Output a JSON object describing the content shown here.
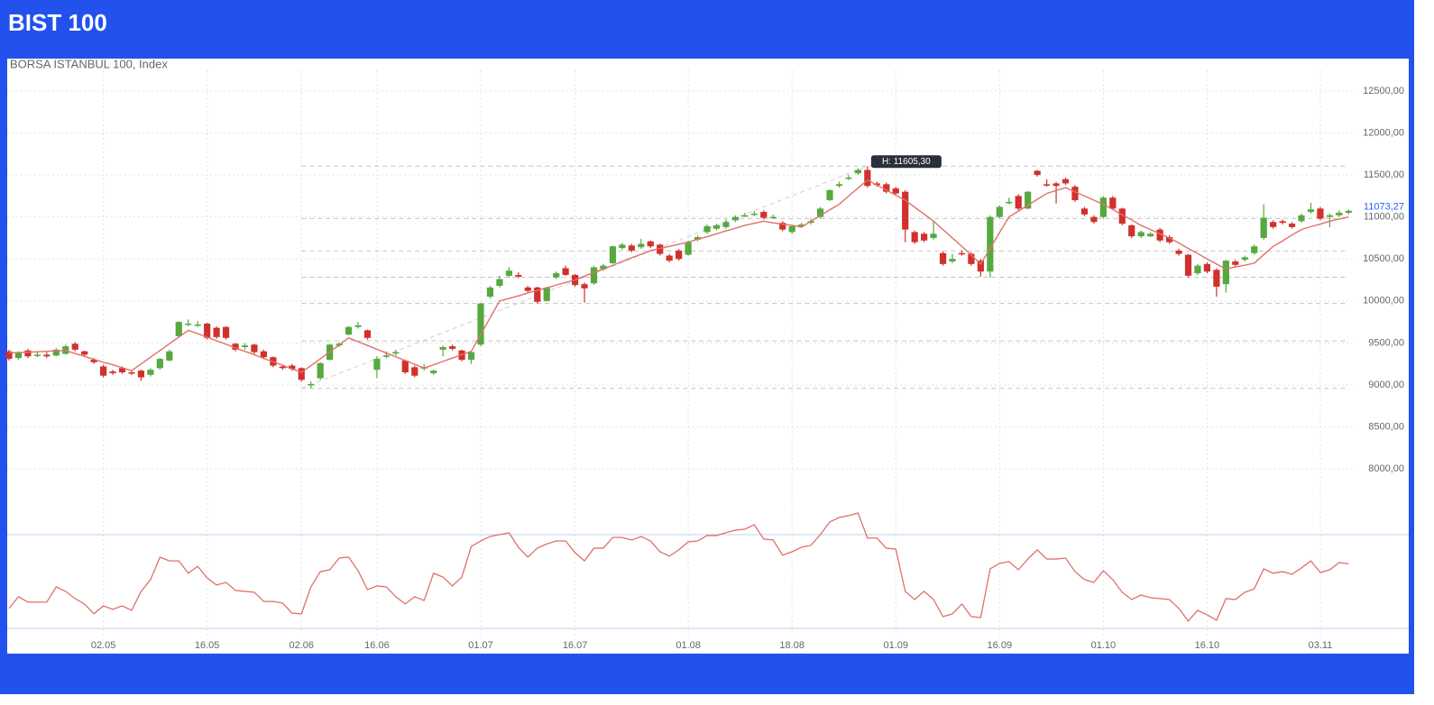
{
  "header": {
    "title": "BIST 100"
  },
  "chart_data": {
    "type": "candlestick",
    "title": "BORSA ISTANBUL 100, Index",
    "categories": [
      null,
      null,
      null,
      null,
      null,
      null,
      null,
      null,
      null,
      null,
      "02.05",
      null,
      null,
      null,
      null,
      null,
      null,
      null,
      null,
      null,
      null,
      "16.05",
      null,
      null,
      null,
      null,
      null,
      null,
      null,
      null,
      null,
      "02.06",
      null,
      null,
      null,
      null,
      null,
      null,
      null,
      "16.06",
      null,
      null,
      null,
      null,
      null,
      null,
      null,
      null,
      null,
      null,
      "01.07",
      null,
      null,
      null,
      null,
      null,
      null,
      null,
      null,
      null,
      "16.07",
      null,
      null,
      null,
      null,
      null,
      null,
      null,
      null,
      null,
      null,
      null,
      "01.08",
      null,
      null,
      null,
      null,
      null,
      null,
      null,
      null,
      null,
      null,
      "18.08",
      null,
      null,
      null,
      null,
      null,
      null,
      null,
      null,
      null,
      null,
      "01.09",
      null,
      null,
      null,
      null,
      null,
      null,
      null,
      null,
      null,
      null,
      "16.09",
      null,
      null,
      null,
      null,
      null,
      null,
      null,
      null,
      null,
      null,
      "01.10",
      null,
      null,
      null,
      null,
      null,
      null,
      null,
      null,
      null,
      null,
      "16.10",
      null,
      null,
      null,
      null,
      null,
      null,
      null,
      null,
      null,
      null,
      null,
      "03.11",
      null,
      null,
      null
    ],
    "open": [
      9400,
      9320,
      9410,
      9350,
      9360,
      9350,
      9370,
      9490,
      9400,
      9300,
      9220,
      9160,
      9200,
      9150,
      9170,
      9120,
      9200,
      9290,
      9580,
      9720,
      9720,
      9730,
      9680,
      9690,
      9490,
      9450,
      9480,
      9400,
      9330,
      9220,
      9230,
      9200,
      9000,
      9080,
      9300,
      9470,
      9600,
      9690,
      9650,
      9180,
      9340,
      9380,
      9290,
      9210,
      9200,
      9140,
      9420,
      9460,
      9410,
      9300,
      9480,
      10050,
      10180,
      10300,
      10310,
      10160,
      10160,
      10000,
      10280,
      10390,
      10310,
      10200,
      10210,
      10380,
      10450,
      10630,
      10660,
      10640,
      10710,
      10670,
      10540,
      10600,
      10550,
      10730,
      10820,
      10860,
      10880,
      10960,
      11010,
      11030,
      11060,
      11000,
      10930,
      10820,
      10890,
      10930,
      11000,
      11200,
      11370,
      11460,
      11520,
      11560,
      11400,
      11390,
      11340,
      11300,
      10820,
      10800,
      10750,
      10570,
      10470,
      10570,
      10560,
      10480,
      10350,
      11000,
      11170,
      11250,
      11100,
      11550,
      11390,
      11400,
      11450,
      11360,
      11100,
      11000,
      11000,
      11230,
      11100,
      10900,
      10770,
      10770,
      10850,
      10760,
      10600,
      10550,
      10330,
      10440,
      10370,
      10200,
      10470,
      10490,
      10570,
      10750,
      10940,
      10950,
      10920,
      10950,
      11060,
      11100,
      11000,
      11020,
      11050
    ],
    "high": [
      9420,
      9400,
      9430,
      9400,
      9390,
      9440,
      9480,
      9510,
      9410,
      9320,
      9240,
      9180,
      9220,
      9170,
      9180,
      9200,
      9320,
      9420,
      9760,
      9780,
      9760,
      9740,
      9700,
      9700,
      9500,
      9500,
      9490,
      9420,
      9340,
      9240,
      9250,
      9210,
      9040,
      9270,
      9490,
      9510,
      9700,
      9750,
      9660,
      9340,
      9400,
      9420,
      9300,
      9230,
      9250,
      9180,
      9470,
      9480,
      9420,
      9400,
      9980,
      10180,
      10300,
      10400,
      10340,
      10180,
      10170,
      10170,
      10350,
      10420,
      10320,
      10220,
      10420,
      10440,
      10660,
      10690,
      10680,
      10740,
      10720,
      10680,
      10560,
      10620,
      10720,
      10780,
      10910,
      10920,
      10970,
      11020,
      11050,
      11070,
      11080,
      11030,
      10950,
      10900,
      10930,
      10980,
      11120,
      11330,
      11420,
      11500,
      11580,
      11605.3,
      11420,
      11410,
      11360,
      11320,
      10840,
      10820,
      10950,
      10590,
      10560,
      10600,
      10580,
      10500,
      11020,
      11140,
      11230,
      11270,
      11310,
      11560,
      11450,
      11420,
      11470,
      11380,
      11120,
      11020,
      11250,
      11250,
      11110,
      10910,
      10840,
      10820,
      10870,
      10780,
      10620,
      10560,
      10440,
      10460,
      10390,
      10490,
      10490,
      10540,
      10670,
      11150,
      10960,
      10970,
      10940,
      11040,
      11170,
      11120,
      11040,
      11080,
      11090
    ],
    "low": [
      9290,
      9300,
      9320,
      9330,
      9320,
      9340,
      9360,
      9400,
      9340,
      9250,
      9090,
      9120,
      9130,
      9120,
      9050,
      9100,
      9180,
      9280,
      9560,
      9700,
      9690,
      9540,
      9550,
      9540,
      9400,
      9420,
      9370,
      9310,
      9210,
      9180,
      9170,
      9040,
      8960,
      9060,
      9290,
      9450,
      9590,
      9670,
      9540,
      9080,
      9320,
      9350,
      9130,
      9090,
      9170,
      9120,
      9340,
      9410,
      9280,
      9250,
      9460,
      10030,
      10160,
      10280,
      10270,
      10100,
      9970,
      9990,
      10260,
      10300,
      10170,
      9980,
      10190,
      10360,
      10440,
      10610,
      10580,
      10620,
      10630,
      10540,
      10460,
      10480,
      10540,
      10710,
      10800,
      10840,
      10860,
      10940,
      11000,
      11010,
      10970,
      10980,
      10830,
      10800,
      10870,
      10910,
      10980,
      11190,
      11350,
      11440,
      11500,
      11350,
      11360,
      11280,
      11260,
      10700,
      10680,
      10700,
      10730,
      10420,
      10450,
      10540,
      10420,
      10290,
      10280,
      10980,
      11150,
      11080,
      11090,
      11480,
      11360,
      11160,
      11380,
      11180,
      11010,
      10920,
      10980,
      11080,
      10900,
      10750,
      10750,
      10760,
      10700,
      10680,
      10540,
      10280,
      10310,
      10330,
      10050,
      10100,
      10410,
      10470,
      10550,
      10730,
      10860,
      10910,
      10860,
      10930,
      11040,
      10960,
      10880,
      11000,
      11030
    ],
    "close": [
      9310,
      9380,
      9340,
      9360,
      9340,
      9420,
      9460,
      9420,
      9360,
      9270,
      9110,
      9140,
      9150,
      9140,
      9090,
      9180,
      9310,
      9400,
      9750,
      9730,
      9720,
      9560,
      9570,
      9560,
      9420,
      9470,
      9390,
      9330,
      9230,
      9200,
      9190,
      9060,
      9010,
      9260,
      9480,
      9490,
      9690,
      9710,
      9560,
      9310,
      9350,
      9390,
      9150,
      9110,
      9210,
      9170,
      9450,
      9430,
      9300,
      9390,
      9970,
      10160,
      10260,
      10360,
      10290,
      10120,
      9990,
      10160,
      10330,
      10310,
      10190,
      10150,
      10400,
      10420,
      10650,
      10670,
      10600,
      10680,
      10650,
      10560,
      10480,
      10500,
      10700,
      10760,
      10890,
      10900,
      10940,
      11000,
      11020,
      11040,
      10990,
      11000,
      10850,
      10890,
      10910,
      10950,
      11100,
      11320,
      11390,
      11470,
      11560,
      11370,
      11380,
      11300,
      11280,
      10850,
      10700,
      10720,
      10800,
      10440,
      10500,
      10560,
      10440,
      10350,
      11000,
      11120,
      11180,
      11100,
      11300,
      11500,
      11380,
      11370,
      11400,
      11200,
      11030,
      10940,
      11230,
      11100,
      10920,
      10770,
      10820,
      10800,
      10720,
      10700,
      10560,
      10300,
      10420,
      10350,
      10170,
      10480,
      10430,
      10520,
      10650,
      10990,
      10880,
      10930,
      10880,
      11020,
      11090,
      10980,
      11020,
      11050,
      11073.27
    ],
    "up_color": "#55a93f",
    "down_color": "#d1302c",
    "ylim": [
      7400,
      12800
    ],
    "yticks": [
      {
        "value": 8000,
        "label": "8000,00"
      },
      {
        "value": 8500,
        "label": "8500,00"
      },
      {
        "value": 9000,
        "label": "9000,00"
      },
      {
        "value": 9500,
        "label": "9500,00"
      },
      {
        "value": 10000,
        "label": "10000,00"
      },
      {
        "value": 10500,
        "label": "10500,00"
      },
      {
        "value": 11000,
        "label": "11000,00"
      },
      {
        "value": 11500,
        "label": "11500,00"
      },
      {
        "value": 12000,
        "label": "12000,00"
      },
      {
        "value": 12500,
        "label": "12500,00"
      }
    ],
    "grid": true,
    "moving_average": {
      "color": "#e0706a",
      "values": [
        9380,
        9385,
        9390,
        9395,
        9400,
        9405,
        9410,
        9375,
        9340,
        9305,
        9270,
        9240,
        9205,
        9170,
        9250,
        9330,
        9410,
        9490,
        9570,
        9650,
        9610,
        9570,
        9525,
        9485,
        9440,
        9400,
        9360,
        9315,
        9275,
        9235,
        9190,
        9150,
        9230,
        9310,
        9395,
        9475,
        9560,
        9515,
        9470,
        9425,
        9380,
        9335,
        9290,
        9245,
        9200,
        9240,
        9280,
        9320,
        9360,
        9400,
        9600,
        9800,
        10000,
        10030,
        10060,
        10095,
        10125,
        10155,
        10190,
        10220,
        10250,
        10295,
        10340,
        10380,
        10425,
        10470,
        10515,
        10555,
        10600,
        10625,
        10650,
        10675,
        10700,
        10735,
        10765,
        10800,
        10835,
        10865,
        10900,
        10925,
        10950,
        10930,
        10915,
        10900,
        10880,
        10950,
        11015,
        11085,
        11150,
        11250,
        11345,
        11440,
        11380,
        11320,
        11260,
        11200,
        11115,
        11035,
        10950,
        10850,
        10750,
        10650,
        10545,
        10440,
        10625,
        10815,
        11000,
        11070,
        11140,
        11210,
        11280,
        11315,
        11350,
        11300,
        11250,
        11200,
        11150,
        11090,
        11025,
        10965,
        10900,
        10850,
        10800,
        10750,
        10690,
        10625,
        10565,
        10500,
        10440,
        10380,
        10405,
        10425,
        10450,
        10550,
        10650,
        10715,
        10785,
        10850,
        10885,
        10915,
        10950,
        10975,
        11000
      ]
    },
    "last_price": {
      "value": 11073.27,
      "label": "11073,27",
      "color": "#2962ff"
    },
    "high_annotation": {
      "value": 11605.3,
      "label": "H: 11605,30"
    },
    "fib_levels": [
      11605.3,
      10981,
      10595,
      10283,
      9970,
      9526,
      8960
    ],
    "rsi": {
      "color": "#e0706a",
      "ylim": [
        20,
        80
      ],
      "levels": [
        70,
        30
      ],
      "level_color": "#b9d3ee",
      "values": [
        38.5,
        43.5,
        41.2,
        41.2,
        41.2,
        47.7,
        45.8,
        42.7,
        40.4,
        36.2,
        39.6,
        38.1,
        39.6,
        37.7,
        45.8,
        50.8,
        60.4,
        58.8,
        58.8,
        53.5,
        56.5,
        51.5,
        48.5,
        49.6,
        46.2,
        45.8,
        45.4,
        41.5,
        41.5,
        40.8,
        36.5,
        36.2,
        47.7,
        54.2,
        55,
        60,
        60.4,
        54.6,
        46.5,
        48.1,
        47.7,
        43.5,
        40.4,
        43.5,
        41.9,
        53.5,
        51.9,
        48.1,
        51.9,
        65,
        67.3,
        69.2,
        70,
        70.8,
        64.6,
        60.4,
        64.2,
        66,
        67.3,
        67.3,
        62.3,
        58.8,
        64.2,
        64.2,
        68.8,
        68.8,
        67.7,
        69.2,
        67.3,
        62.7,
        60.8,
        63.5,
        66.9,
        67.3,
        69.6,
        69.6,
        70.8,
        71.9,
        72.3,
        74.2,
        68.1,
        67.7,
        61.2,
        62.7,
        64.6,
        65.4,
        70,
        75.4,
        77.3,
        78.1,
        79.2,
        68.5,
        68.5,
        64.2,
        63.8,
        45.8,
        42.3,
        45.8,
        42.3,
        35,
        36.2,
        40.4,
        35,
        34.6,
        55.4,
        57.7,
        58.5,
        55,
        59.6,
        63.5,
        59.6,
        59.6,
        60,
        54.2,
        50.8,
        49.6,
        54.6,
        50.8,
        45.4,
        42.3,
        44.2,
        43.1,
        42.7,
        42.3,
        38.5,
        33.1,
        37.7,
        35.8,
        33.5,
        42.7,
        42.3,
        45.4,
        46.9,
        55.4,
        53.5,
        54.2,
        53.1,
        55.8,
        58.8,
        53.8,
        55,
        58.1,
        57.5
      ]
    }
  }
}
